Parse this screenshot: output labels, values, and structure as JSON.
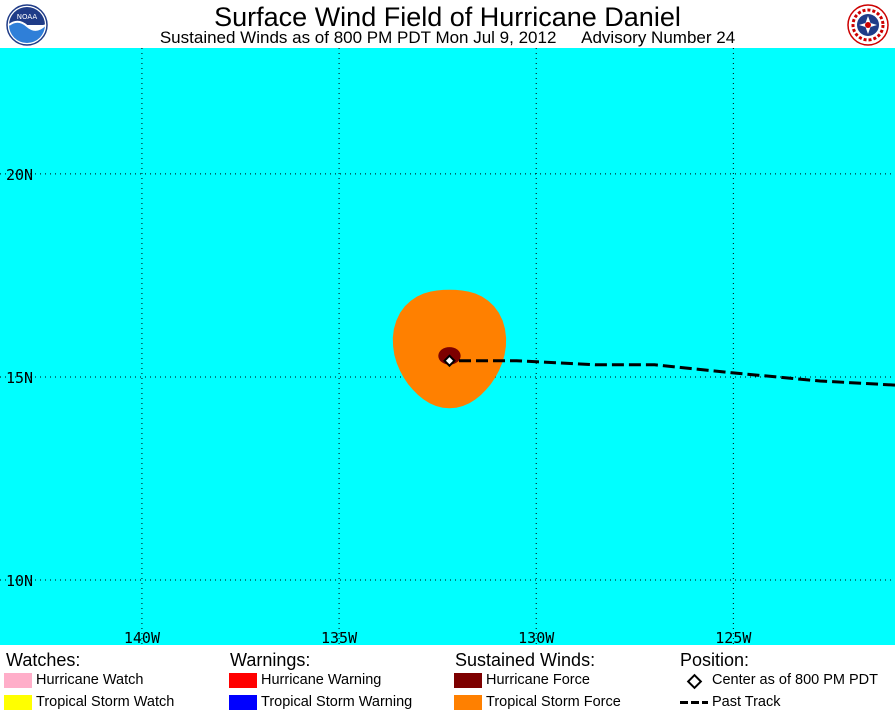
{
  "header": {
    "title": "Surface Wind Field of Hurricane Daniel",
    "subtitle_time": "Sustained Winds as of 800 PM PDT Mon Jul 9, 2012",
    "subtitle_advisory": "Advisory Number 24",
    "left_logo": "noaa-logo",
    "right_logo": "nws-logo"
  },
  "map": {
    "ocean_color": "#00ffff",
    "lat_labels": [
      "20N",
      "15N",
      "10N"
    ],
    "lon_labels": [
      "140W",
      "135W",
      "130W",
      "125W"
    ],
    "lon_range": [
      -143.6,
      -120.9
    ],
    "lat_range": [
      8.4,
      23.1
    ],
    "storm_center": {
      "lon": -132.2,
      "lat": 15.4
    },
    "tropical_storm_force_radius_deg": 1.35,
    "hurricane_force_radius_deg": 0.27,
    "past_track": [
      [
        -120.9,
        14.8
      ],
      [
        -122.8,
        14.9
      ],
      [
        -125,
        15.1
      ],
      [
        -127,
        15.3
      ],
      [
        -128.5,
        15.3
      ],
      [
        -130.5,
        15.4
      ],
      [
        -132.2,
        15.4
      ]
    ],
    "colors": {
      "tropical_storm_force": "#ff8000",
      "hurricane_force": "#7d0000",
      "track": "#000000",
      "grid": "#000000"
    }
  },
  "legend": {
    "watches_label": "Watches:",
    "warnings_label": "Warnings:",
    "winds_label": "Sustained Winds:",
    "position_label": "Position:",
    "hurricane_watch": "Hurricane Watch",
    "tropical_storm_watch": "Tropical Storm Watch",
    "hurricane_warning": "Hurricane Warning",
    "tropical_storm_warning": "Tropical Storm Warning",
    "hurricane_force": "Hurricane Force",
    "tropical_storm_force": "Tropical Storm Force",
    "center": "Center as of 800 PM PDT",
    "past_track": "Past Track",
    "colors": {
      "hurricane_watch": "#ffaec9",
      "tropical_storm_watch": "#ffff00",
      "hurricane_warning": "#ff0000",
      "tropical_storm_warning": "#0000ff",
      "hurricane_force": "#7d0000",
      "tropical_storm_force": "#ff8000"
    }
  }
}
